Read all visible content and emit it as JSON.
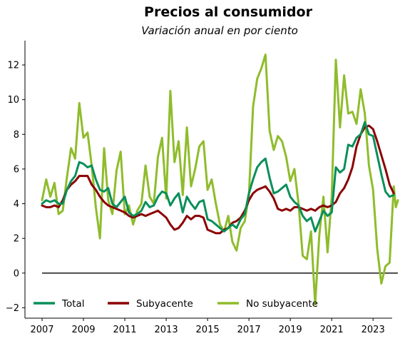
{
  "chart_data": {
    "type": "line",
    "title": "Precios al consumidor",
    "subtitle": "Variación anual en por ciento",
    "xlabel": "",
    "ylabel": "",
    "xlim": [
      2007.0,
      2024.2
    ],
    "ylim": [
      -2.6,
      13.4
    ],
    "xticks": [
      2007,
      2009,
      2011,
      2013,
      2015,
      2017,
      2019,
      2021,
      2023
    ],
    "yticks": [
      -2,
      0,
      2,
      4,
      6,
      8,
      10,
      12
    ],
    "legend_position": "bottom",
    "zero_line": true,
    "series": [
      {
        "name": "Total",
        "color": "#0a8f5a",
        "points": [
          [
            2007.0,
            4.0
          ],
          [
            2007.2,
            4.2
          ],
          [
            2007.4,
            4.1
          ],
          [
            2007.6,
            4.2
          ],
          [
            2007.8,
            4.0
          ],
          [
            2008.0,
            4.0
          ],
          [
            2008.2,
            4.8
          ],
          [
            2008.4,
            5.3
          ],
          [
            2008.6,
            5.6
          ],
          [
            2008.8,
            6.4
          ],
          [
            2009.0,
            6.3
          ],
          [
            2009.2,
            6.1
          ],
          [
            2009.4,
            6.2
          ],
          [
            2009.6,
            5.4
          ],
          [
            2009.8,
            4.8
          ],
          [
            2010.0,
            4.7
          ],
          [
            2010.2,
            4.9
          ],
          [
            2010.4,
            4.0
          ],
          [
            2010.6,
            3.8
          ],
          [
            2010.8,
            4.1
          ],
          [
            2011.0,
            4.4
          ],
          [
            2011.2,
            3.5
          ],
          [
            2011.4,
            3.3
          ],
          [
            2011.6,
            3.4
          ],
          [
            2011.8,
            3.6
          ],
          [
            2012.0,
            4.1
          ],
          [
            2012.2,
            3.8
          ],
          [
            2012.4,
            3.9
          ],
          [
            2012.6,
            4.4
          ],
          [
            2012.8,
            4.7
          ],
          [
            2013.0,
            4.6
          ],
          [
            2013.2,
            3.9
          ],
          [
            2013.4,
            4.3
          ],
          [
            2013.6,
            4.6
          ],
          [
            2013.8,
            3.5
          ],
          [
            2014.0,
            4.4
          ],
          [
            2014.2,
            4.0
          ],
          [
            2014.4,
            3.7
          ],
          [
            2014.6,
            4.1
          ],
          [
            2014.8,
            4.2
          ],
          [
            2015.0,
            3.1
          ],
          [
            2015.2,
            3.0
          ],
          [
            2015.4,
            2.8
          ],
          [
            2015.6,
            2.6
          ],
          [
            2015.8,
            2.4
          ],
          [
            2016.0,
            2.6
          ],
          [
            2016.2,
            2.8
          ],
          [
            2016.4,
            2.6
          ],
          [
            2016.6,
            3.1
          ],
          [
            2016.8,
            3.4
          ],
          [
            2017.0,
            4.6
          ],
          [
            2017.2,
            5.4
          ],
          [
            2017.4,
            6.1
          ],
          [
            2017.6,
            6.4
          ],
          [
            2017.8,
            6.6
          ],
          [
            2018.0,
            5.5
          ],
          [
            2018.2,
            4.6
          ],
          [
            2018.4,
            4.7
          ],
          [
            2018.6,
            4.9
          ],
          [
            2018.8,
            5.1
          ],
          [
            2019.0,
            4.4
          ],
          [
            2019.2,
            4.1
          ],
          [
            2019.4,
            3.9
          ],
          [
            2019.6,
            3.3
          ],
          [
            2019.8,
            3.0
          ],
          [
            2020.0,
            3.2
          ],
          [
            2020.2,
            2.4
          ],
          [
            2020.4,
            3.0
          ],
          [
            2020.6,
            3.6
          ],
          [
            2020.8,
            3.3
          ],
          [
            2021.0,
            3.5
          ],
          [
            2021.2,
            6.1
          ],
          [
            2021.4,
            5.8
          ],
          [
            2021.6,
            6.0
          ],
          [
            2021.8,
            7.4
          ],
          [
            2022.0,
            7.3
          ],
          [
            2022.2,
            7.8
          ],
          [
            2022.4,
            8.0
          ],
          [
            2022.6,
            8.7
          ],
          [
            2022.8,
            8.0
          ],
          [
            2023.0,
            7.9
          ],
          [
            2023.2,
            6.8
          ],
          [
            2023.4,
            5.7
          ],
          [
            2023.6,
            4.7
          ],
          [
            2023.8,
            4.4
          ],
          [
            2024.0,
            4.5
          ]
        ]
      },
      {
        "name": "Subyacente",
        "color": "#8b0000",
        "points": [
          [
            2007.0,
            3.9
          ],
          [
            2007.2,
            3.8
          ],
          [
            2007.4,
            3.8
          ],
          [
            2007.6,
            3.9
          ],
          [
            2007.8,
            3.8
          ],
          [
            2008.0,
            4.2
          ],
          [
            2008.2,
            4.8
          ],
          [
            2008.4,
            5.1
          ],
          [
            2008.6,
            5.3
          ],
          [
            2008.8,
            5.6
          ],
          [
            2009.0,
            5.6
          ],
          [
            2009.2,
            5.6
          ],
          [
            2009.4,
            5.1
          ],
          [
            2009.6,
            4.8
          ],
          [
            2009.8,
            4.4
          ],
          [
            2010.0,
            4.1
          ],
          [
            2010.2,
            3.9
          ],
          [
            2010.4,
            3.8
          ],
          [
            2010.6,
            3.7
          ],
          [
            2010.8,
            3.6
          ],
          [
            2011.0,
            3.5
          ],
          [
            2011.2,
            3.3
          ],
          [
            2011.4,
            3.2
          ],
          [
            2011.6,
            3.3
          ],
          [
            2011.8,
            3.4
          ],
          [
            2012.0,
            3.3
          ],
          [
            2012.2,
            3.4
          ],
          [
            2012.4,
            3.5
          ],
          [
            2012.6,
            3.6
          ],
          [
            2012.8,
            3.4
          ],
          [
            2013.0,
            3.2
          ],
          [
            2013.2,
            2.8
          ],
          [
            2013.4,
            2.5
          ],
          [
            2013.6,
            2.6
          ],
          [
            2013.8,
            2.9
          ],
          [
            2014.0,
            3.3
          ],
          [
            2014.2,
            3.1
          ],
          [
            2014.4,
            3.3
          ],
          [
            2014.6,
            3.3
          ],
          [
            2014.8,
            3.2
          ],
          [
            2015.0,
            2.5
          ],
          [
            2015.2,
            2.4
          ],
          [
            2015.4,
            2.3
          ],
          [
            2015.6,
            2.3
          ],
          [
            2015.8,
            2.5
          ],
          [
            2016.0,
            2.6
          ],
          [
            2016.2,
            2.9
          ],
          [
            2016.4,
            3.0
          ],
          [
            2016.6,
            3.2
          ],
          [
            2016.8,
            3.6
          ],
          [
            2017.0,
            4.2
          ],
          [
            2017.2,
            4.6
          ],
          [
            2017.4,
            4.8
          ],
          [
            2017.6,
            4.9
          ],
          [
            2017.8,
            5.0
          ],
          [
            2018.0,
            4.7
          ],
          [
            2018.2,
            4.3
          ],
          [
            2018.4,
            3.7
          ],
          [
            2018.6,
            3.6
          ],
          [
            2018.8,
            3.7
          ],
          [
            2019.0,
            3.6
          ],
          [
            2019.2,
            3.8
          ],
          [
            2019.4,
            3.8
          ],
          [
            2019.6,
            3.7
          ],
          [
            2019.8,
            3.6
          ],
          [
            2020.0,
            3.7
          ],
          [
            2020.2,
            3.6
          ],
          [
            2020.4,
            3.8
          ],
          [
            2020.6,
            3.9
          ],
          [
            2020.8,
            3.8
          ],
          [
            2021.0,
            3.9
          ],
          [
            2021.2,
            4.1
          ],
          [
            2021.4,
            4.6
          ],
          [
            2021.6,
            4.9
          ],
          [
            2021.8,
            5.4
          ],
          [
            2022.0,
            6.1
          ],
          [
            2022.2,
            7.3
          ],
          [
            2022.4,
            8.0
          ],
          [
            2022.6,
            8.4
          ],
          [
            2022.8,
            8.5
          ],
          [
            2023.0,
            8.3
          ],
          [
            2023.2,
            7.6
          ],
          [
            2023.4,
            6.8
          ],
          [
            2023.6,
            6.0
          ],
          [
            2023.8,
            5.1
          ],
          [
            2024.0,
            4.6
          ]
        ]
      },
      {
        "name": "No subyacente",
        "color": "#8fbc2c",
        "points": [
          [
            2007.0,
            4.2
          ],
          [
            2007.2,
            5.4
          ],
          [
            2007.4,
            4.4
          ],
          [
            2007.6,
            5.2
          ],
          [
            2007.8,
            3.4
          ],
          [
            2008.0,
            3.6
          ],
          [
            2008.2,
            5.5
          ],
          [
            2008.4,
            7.2
          ],
          [
            2008.6,
            6.6
          ],
          [
            2008.8,
            9.8
          ],
          [
            2009.0,
            7.8
          ],
          [
            2009.2,
            8.1
          ],
          [
            2009.4,
            6.2
          ],
          [
            2009.6,
            3.8
          ],
          [
            2009.8,
            2.0
          ],
          [
            2010.0,
            7.2
          ],
          [
            2010.2,
            4.2
          ],
          [
            2010.4,
            3.4
          ],
          [
            2010.6,
            5.9
          ],
          [
            2010.8,
            7.0
          ],
          [
            2011.0,
            3.4
          ],
          [
            2011.2,
            3.9
          ],
          [
            2011.4,
            2.8
          ],
          [
            2011.6,
            3.6
          ],
          [
            2011.8,
            4.0
          ],
          [
            2012.0,
            6.2
          ],
          [
            2012.2,
            4.4
          ],
          [
            2012.4,
            4.0
          ],
          [
            2012.6,
            6.7
          ],
          [
            2012.8,
            7.8
          ],
          [
            2013.0,
            4.3
          ],
          [
            2013.2,
            10.5
          ],
          [
            2013.4,
            6.4
          ],
          [
            2013.6,
            7.6
          ],
          [
            2013.8,
            4.5
          ],
          [
            2014.0,
            8.4
          ],
          [
            2014.2,
            5.0
          ],
          [
            2014.4,
            6.0
          ],
          [
            2014.6,
            7.3
          ],
          [
            2014.8,
            7.6
          ],
          [
            2015.0,
            4.8
          ],
          [
            2015.2,
            5.4
          ],
          [
            2015.4,
            4.0
          ],
          [
            2015.6,
            2.8
          ],
          [
            2015.8,
            2.4
          ],
          [
            2016.0,
            3.3
          ],
          [
            2016.2,
            1.8
          ],
          [
            2016.4,
            1.3
          ],
          [
            2016.6,
            2.6
          ],
          [
            2016.8,
            3.0
          ],
          [
            2017.0,
            4.5
          ],
          [
            2017.2,
            9.6
          ],
          [
            2017.4,
            11.2
          ],
          [
            2017.6,
            11.8
          ],
          [
            2017.8,
            12.6
          ],
          [
            2018.0,
            8.2
          ],
          [
            2018.2,
            7.1
          ],
          [
            2018.4,
            7.9
          ],
          [
            2018.6,
            7.6
          ],
          [
            2018.8,
            6.7
          ],
          [
            2019.0,
            5.3
          ],
          [
            2019.2,
            6.0
          ],
          [
            2019.4,
            4.0
          ],
          [
            2019.6,
            1.0
          ],
          [
            2019.8,
            0.8
          ],
          [
            2020.0,
            2.4
          ],
          [
            2020.2,
            -1.8
          ],
          [
            2020.4,
            2.2
          ],
          [
            2020.6,
            4.4
          ],
          [
            2020.8,
            1.2
          ],
          [
            2021.0,
            4.4
          ],
          [
            2021.2,
            12.3
          ],
          [
            2021.4,
            8.4
          ],
          [
            2021.6,
            11.4
          ],
          [
            2021.8,
            9.2
          ],
          [
            2022.0,
            9.3
          ],
          [
            2022.2,
            8.6
          ],
          [
            2022.4,
            10.6
          ],
          [
            2022.6,
            9.2
          ],
          [
            2022.8,
            6.2
          ],
          [
            2023.0,
            4.8
          ],
          [
            2023.2,
            1.4
          ],
          [
            2023.4,
            -0.6
          ],
          [
            2023.6,
            0.4
          ],
          [
            2023.8,
            0.6
          ],
          [
            2024.0,
            5.0
          ],
          [
            2024.1,
            3.8
          ],
          [
            2024.2,
            4.2
          ]
        ]
      }
    ]
  }
}
